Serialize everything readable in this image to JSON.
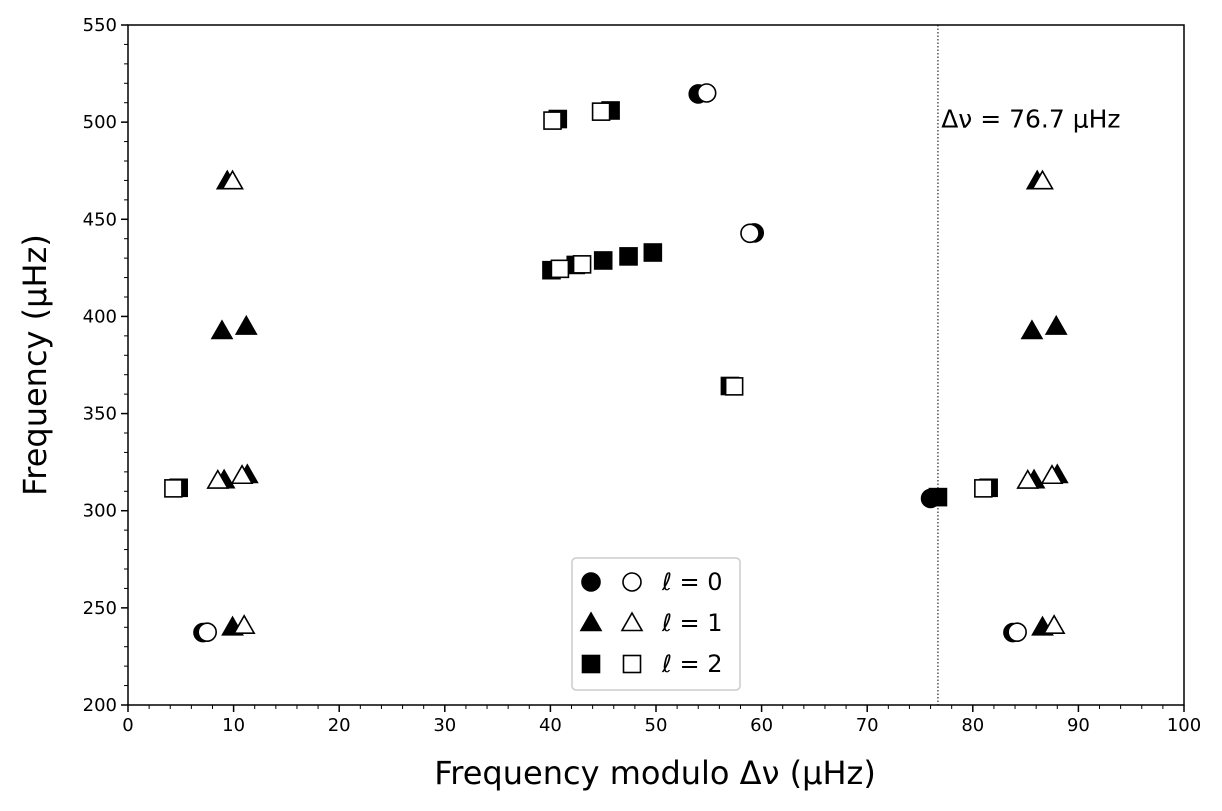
{
  "chart_data": {
    "type": "scatter",
    "title": "",
    "xlabel": "Frequency modulo Δν (μHz)",
    "ylabel": "Frequency (μHz)",
    "xlim": [
      0,
      100
    ],
    "ylim": [
      200,
      550
    ],
    "x_ticks": [
      0,
      10,
      20,
      30,
      40,
      50,
      60,
      70,
      80,
      90,
      100
    ],
    "y_ticks": [
      200,
      250,
      300,
      350,
      400,
      450,
      500,
      550
    ],
    "x_tick_labels": [
      "0",
      "10",
      "20",
      "30",
      "40",
      "50",
      "60",
      "70",
      "80",
      "90",
      "100"
    ],
    "y_tick_labels": [
      "200",
      "250",
      "300",
      "350",
      "400",
      "450",
      "500",
      "550"
    ],
    "grid": false,
    "vline": {
      "x": 76.7,
      "style": "dotted",
      "color": "#000000"
    },
    "annotation": {
      "text": "Δν = 76.7 μHz",
      "x": 85.5,
      "y": 502
    },
    "legend": {
      "placement": "bottom-center",
      "entries": [
        {
          "label": "ℓ = 0",
          "marker": "circle"
        },
        {
          "label": "ℓ = 1",
          "marker": "triangle"
        },
        {
          "label": "ℓ = 2",
          "marker": "square"
        }
      ]
    },
    "series": [
      {
        "marker": "circle",
        "fill": "filled",
        "points": [
          {
            "x": 7.1,
            "y": 237.3
          },
          {
            "x": 76.0,
            "y": 306.3
          },
          {
            "x": 54.0,
            "y": 514.5
          },
          {
            "x": 59.3,
            "y": 443.0
          },
          {
            "x": 83.8,
            "y": 237.3
          }
        ]
      },
      {
        "marker": "circle",
        "fill": "open",
        "points": [
          {
            "x": 7.5,
            "y": 237.5
          },
          {
            "x": 54.8,
            "y": 515.0
          },
          {
            "x": 58.9,
            "y": 442.8
          },
          {
            "x": 84.2,
            "y": 237.5
          }
        ]
      },
      {
        "marker": "triangle",
        "fill": "filled",
        "points": [
          {
            "x": 9.9,
            "y": 240.0
          },
          {
            "x": 9.1,
            "y": 315.7
          },
          {
            "x": 11.3,
            "y": 318.4
          },
          {
            "x": 8.9,
            "y": 392.5
          },
          {
            "x": 11.2,
            "y": 394.8
          },
          {
            "x": 9.4,
            "y": 469.6
          },
          {
            "x": 86.6,
            "y": 240.0
          },
          {
            "x": 85.8,
            "y": 315.7
          },
          {
            "x": 88.0,
            "y": 318.4
          },
          {
            "x": 85.6,
            "y": 392.5
          },
          {
            "x": 87.9,
            "y": 394.8
          },
          {
            "x": 86.1,
            "y": 469.6
          }
        ]
      },
      {
        "marker": "triangle",
        "fill": "open",
        "points": [
          {
            "x": 11.0,
            "y": 240.8
          },
          {
            "x": 8.5,
            "y": 315.5
          },
          {
            "x": 10.8,
            "y": 318.0
          },
          {
            "x": 9.9,
            "y": 469.6
          },
          {
            "x": 87.7,
            "y": 240.8
          },
          {
            "x": 85.2,
            "y": 315.5
          },
          {
            "x": 87.5,
            "y": 318.0
          },
          {
            "x": 86.6,
            "y": 469.6
          }
        ]
      },
      {
        "marker": "square",
        "fill": "filled",
        "points": [
          {
            "x": 4.8,
            "y": 311.8
          },
          {
            "x": 40.7,
            "y": 501.6
          },
          {
            "x": 45.7,
            "y": 506.0
          },
          {
            "x": 40.1,
            "y": 423.8
          },
          {
            "x": 42.4,
            "y": 426.5
          },
          {
            "x": 45.0,
            "y": 428.8
          },
          {
            "x": 47.4,
            "y": 430.9
          },
          {
            "x": 49.7,
            "y": 432.9
          },
          {
            "x": 57.0,
            "y": 364.2
          },
          {
            "x": 76.7,
            "y": 307.0
          },
          {
            "x": 81.5,
            "y": 311.8
          }
        ]
      },
      {
        "marker": "square",
        "fill": "open",
        "points": [
          {
            "x": 4.3,
            "y": 311.5
          },
          {
            "x": 40.2,
            "y": 500.8
          },
          {
            "x": 44.8,
            "y": 505.4
          },
          {
            "x": 40.9,
            "y": 424.5
          },
          {
            "x": 43.0,
            "y": 426.8
          },
          {
            "x": 57.4,
            "y": 364.0
          },
          {
            "x": 81.0,
            "y": 311.5
          }
        ]
      }
    ]
  }
}
